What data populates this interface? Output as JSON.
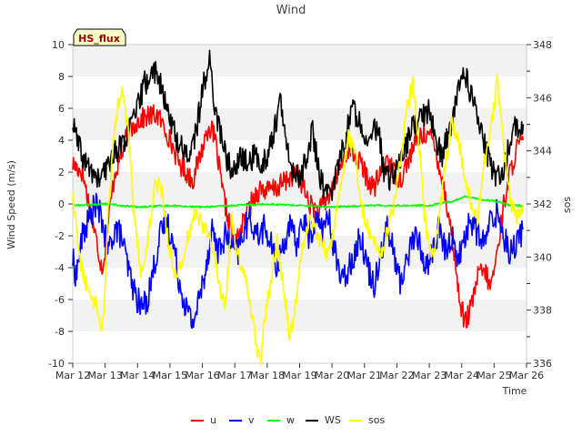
{
  "chart_data": {
    "type": "line",
    "title": "Wind",
    "badge": "HS_flux",
    "xlabel": "Time",
    "ylabel": "Wind Speed (m/s)",
    "y2label": "sos",
    "x_ticks": [
      "Mar 12",
      "Mar 13",
      "Mar 14",
      "Mar 15",
      "Mar 16",
      "Mar 17",
      "Mar 18",
      "Mar 19",
      "Mar 20",
      "Mar 21",
      "Mar 22",
      "Mar 23",
      "Mar 24",
      "Mar 25",
      "Mar 26"
    ],
    "xlim": [
      0,
      14
    ],
    "ylim": [
      -10,
      10
    ],
    "y_ticks": [
      -10,
      -8,
      -6,
      -4,
      -2,
      0,
      2,
      4,
      6,
      8,
      10
    ],
    "y2lim": [
      336,
      348
    ],
    "y2_ticks": [
      336,
      338,
      340,
      342,
      344,
      346,
      348
    ],
    "series": [
      {
        "name": "u",
        "color": "#ff0000",
        "axis": "left",
        "points": [
          [
            0.0,
            2.5
          ],
          [
            0.3,
            2.0
          ],
          [
            0.5,
            0.0
          ],
          [
            0.7,
            -2.0
          ],
          [
            0.9,
            -4.0
          ],
          [
            1.0,
            -3.0
          ],
          [
            1.1,
            -1.0
          ],
          [
            1.3,
            2.0
          ],
          [
            1.5,
            3.0
          ],
          [
            1.7,
            4.5
          ],
          [
            2.0,
            5.2
          ],
          [
            2.3,
            5.5
          ],
          [
            2.6,
            5.6
          ],
          [
            2.9,
            4.5
          ],
          [
            3.1,
            3.5
          ],
          [
            3.3,
            2.5
          ],
          [
            3.5,
            2.0
          ],
          [
            3.7,
            1.5
          ],
          [
            4.0,
            3.5
          ],
          [
            4.2,
            5.0
          ],
          [
            4.4,
            4.0
          ],
          [
            4.6,
            1.0
          ],
          [
            4.8,
            -1.0
          ],
          [
            5.0,
            -2.5
          ],
          [
            5.2,
            -1.5
          ],
          [
            5.4,
            -0.5
          ],
          [
            5.6,
            0.5
          ],
          [
            5.8,
            1.0
          ],
          [
            6.0,
            0.8
          ],
          [
            6.3,
            1.0
          ],
          [
            6.6,
            1.5
          ],
          [
            6.9,
            2.0
          ],
          [
            7.1,
            1.2
          ],
          [
            7.3,
            0.0
          ],
          [
            7.6,
            -0.5
          ],
          [
            7.9,
            0.5
          ],
          [
            8.1,
            1.5
          ],
          [
            8.3,
            2.5
          ],
          [
            8.5,
            3.5
          ],
          [
            8.7,
            3.0
          ],
          [
            8.9,
            2.5
          ],
          [
            9.1,
            1.5
          ],
          [
            9.3,
            1.0
          ],
          [
            9.5,
            2.0
          ],
          [
            9.7,
            3.0
          ],
          [
            9.9,
            2.0
          ],
          [
            10.1,
            1.5
          ],
          [
            10.3,
            2.5
          ],
          [
            10.5,
            3.5
          ],
          [
            10.7,
            4.2
          ],
          [
            10.9,
            4.5
          ],
          [
            11.1,
            4.0
          ],
          [
            11.3,
            2.5
          ],
          [
            11.5,
            0.5
          ],
          [
            11.7,
            -2.0
          ],
          [
            11.9,
            -5.5
          ],
          [
            12.1,
            -7.5
          ],
          [
            12.3,
            -6.5
          ],
          [
            12.5,
            -4.5
          ],
          [
            12.7,
            -4.2
          ],
          [
            12.9,
            -5.2
          ],
          [
            13.1,
            -3.0
          ],
          [
            13.3,
            0.0
          ],
          [
            13.5,
            2.0
          ],
          [
            13.7,
            3.5
          ],
          [
            13.9,
            4.0
          ]
        ]
      },
      {
        "name": "v",
        "color": "#0000ff",
        "axis": "left",
        "points": [
          [
            0.0,
            -3.5
          ],
          [
            0.1,
            -4.5
          ],
          [
            0.3,
            -2.0
          ],
          [
            0.5,
            -1.0
          ],
          [
            0.7,
            0.0
          ],
          [
            0.9,
            -1.0
          ],
          [
            1.1,
            -3.0
          ],
          [
            1.3,
            -1.5
          ],
          [
            1.5,
            -2.0
          ],
          [
            1.7,
            -4.0
          ],
          [
            1.9,
            -5.5
          ],
          [
            2.1,
            -6.5
          ],
          [
            2.3,
            -6.0
          ],
          [
            2.5,
            -4.0
          ],
          [
            2.7,
            -2.0
          ],
          [
            2.9,
            -1.0
          ],
          [
            3.1,
            -2.5
          ],
          [
            3.3,
            -5.0
          ],
          [
            3.5,
            -6.5
          ],
          [
            3.7,
            -7.5
          ],
          [
            3.9,
            -6.0
          ],
          [
            4.1,
            -4.0
          ],
          [
            4.3,
            -1.5
          ],
          [
            4.5,
            -3.0
          ],
          [
            4.7,
            -2.0
          ],
          [
            4.9,
            -2.5
          ],
          [
            5.1,
            -3.0
          ],
          [
            5.3,
            -1.5
          ],
          [
            5.5,
            -1.0
          ],
          [
            5.7,
            -2.0
          ],
          [
            5.9,
            -1.5
          ],
          [
            6.1,
            -2.5
          ],
          [
            6.3,
            -4.0
          ],
          [
            6.5,
            -2.5
          ],
          [
            6.7,
            -1.5
          ],
          [
            6.9,
            -2.5
          ],
          [
            7.1,
            -1.0
          ],
          [
            7.3,
            -2.0
          ],
          [
            7.5,
            -1.0
          ],
          [
            7.7,
            -1.5
          ],
          [
            7.9,
            -1.0
          ],
          [
            8.1,
            -3.0
          ],
          [
            8.3,
            -5.0
          ],
          [
            8.5,
            -4.0
          ],
          [
            8.7,
            -3.0
          ],
          [
            8.9,
            -2.0
          ],
          [
            9.1,
            -4.0
          ],
          [
            9.3,
            -5.0
          ],
          [
            9.5,
            -3.0
          ],
          [
            9.7,
            -1.5
          ],
          [
            9.9,
            -3.0
          ],
          [
            10.1,
            -5.0
          ],
          [
            10.3,
            -3.5
          ],
          [
            10.5,
            -2.0
          ],
          [
            10.7,
            -2.5
          ],
          [
            10.9,
            -4.0
          ],
          [
            11.1,
            -3.0
          ],
          [
            11.3,
            -1.5
          ],
          [
            11.5,
            -3.0
          ],
          [
            11.7,
            -2.0
          ],
          [
            11.9,
            -3.5
          ],
          [
            12.1,
            -2.0
          ],
          [
            12.3,
            -1.0
          ],
          [
            12.5,
            -2.0
          ],
          [
            12.7,
            -2.5
          ],
          [
            12.9,
            -1.0
          ],
          [
            13.1,
            -0.5
          ],
          [
            13.3,
            -2.0
          ],
          [
            13.5,
            -3.0
          ],
          [
            13.7,
            -2.5
          ],
          [
            13.9,
            -1.5
          ]
        ]
      },
      {
        "name": "w",
        "color": "#00ff00",
        "axis": "left",
        "points": [
          [
            0.0,
            -0.1
          ],
          [
            1.0,
            0.0
          ],
          [
            2.0,
            -0.2
          ],
          [
            3.0,
            -0.1
          ],
          [
            4.0,
            -0.2
          ],
          [
            5.0,
            -0.1
          ],
          [
            6.0,
            0.0
          ],
          [
            7.0,
            -0.1
          ],
          [
            8.0,
            -0.2
          ],
          [
            9.0,
            -0.1
          ],
          [
            10.0,
            -0.1
          ],
          [
            11.0,
            -0.1
          ],
          [
            11.8,
            0.2
          ],
          [
            12.1,
            0.5
          ],
          [
            12.5,
            0.3
          ],
          [
            13.0,
            0.2
          ],
          [
            13.5,
            -0.1
          ],
          [
            13.9,
            -0.1
          ]
        ]
      },
      {
        "name": "WS",
        "color": "#000000",
        "axis": "left",
        "points": [
          [
            0.0,
            5.0
          ],
          [
            0.2,
            3.5
          ],
          [
            0.4,
            2.5
          ],
          [
            0.6,
            2.0
          ],
          [
            0.8,
            1.5
          ],
          [
            1.0,
            2.0
          ],
          [
            1.2,
            3.0
          ],
          [
            1.4,
            3.5
          ],
          [
            1.6,
            4.0
          ],
          [
            1.8,
            5.0
          ],
          [
            2.0,
            6.0
          ],
          [
            2.2,
            7.5
          ],
          [
            2.4,
            8.0
          ],
          [
            2.6,
            8.5
          ],
          [
            2.8,
            6.5
          ],
          [
            3.0,
            5.5
          ],
          [
            3.2,
            4.0
          ],
          [
            3.4,
            3.5
          ],
          [
            3.6,
            3.0
          ],
          [
            3.8,
            4.5
          ],
          [
            4.0,
            7.0
          ],
          [
            4.2,
            9.2
          ],
          [
            4.4,
            6.0
          ],
          [
            4.6,
            4.0
          ],
          [
            4.8,
            2.5
          ],
          [
            5.0,
            2.0
          ],
          [
            5.2,
            3.0
          ],
          [
            5.4,
            2.5
          ],
          [
            5.6,
            3.0
          ],
          [
            5.8,
            2.5
          ],
          [
            6.0,
            3.0
          ],
          [
            6.2,
            4.5
          ],
          [
            6.4,
            6.5
          ],
          [
            6.6,
            3.5
          ],
          [
            6.8,
            2.0
          ],
          [
            7.0,
            1.5
          ],
          [
            7.2,
            3.0
          ],
          [
            7.4,
            4.5
          ],
          [
            7.6,
            2.0
          ],
          [
            7.8,
            0.5
          ],
          [
            8.0,
            1.0
          ],
          [
            8.2,
            2.5
          ],
          [
            8.4,
            4.0
          ],
          [
            8.6,
            6.0
          ],
          [
            8.8,
            5.5
          ],
          [
            9.0,
            4.5
          ],
          [
            9.2,
            4.0
          ],
          [
            9.4,
            5.0
          ],
          [
            9.6,
            2.0
          ],
          [
            9.8,
            1.5
          ],
          [
            10.0,
            2.5
          ],
          [
            10.2,
            3.0
          ],
          [
            10.4,
            4.5
          ],
          [
            10.6,
            5.0
          ],
          [
            10.8,
            5.5
          ],
          [
            11.0,
            6.0
          ],
          [
            11.2,
            4.0
          ],
          [
            11.4,
            3.0
          ],
          [
            11.6,
            4.5
          ],
          [
            11.8,
            6.0
          ],
          [
            12.0,
            8.5
          ],
          [
            12.2,
            7.5
          ],
          [
            12.4,
            6.0
          ],
          [
            12.6,
            4.5
          ],
          [
            12.8,
            3.0
          ],
          [
            13.0,
            2.0
          ],
          [
            13.2,
            1.5
          ],
          [
            13.4,
            3.0
          ],
          [
            13.6,
            5.0
          ],
          [
            13.8,
            4.5
          ],
          [
            13.9,
            5.0
          ]
        ]
      },
      {
        "name": "sos",
        "color": "#ffff00",
        "axis": "right",
        "points": [
          [
            0.0,
            342.5
          ],
          [
            0.2,
            340.0
          ],
          [
            0.4,
            339.0
          ],
          [
            0.6,
            338.5
          ],
          [
            0.8,
            338.0
          ],
          [
            0.9,
            337.2
          ],
          [
            1.0,
            339.0
          ],
          [
            1.1,
            342.0
          ],
          [
            1.3,
            345.0
          ],
          [
            1.5,
            346.3
          ],
          [
            1.7,
            345.0
          ],
          [
            1.9,
            341.5
          ],
          [
            2.1,
            339.5
          ],
          [
            2.3,
            340.5
          ],
          [
            2.5,
            342.5
          ],
          [
            2.7,
            343.0
          ],
          [
            2.9,
            341.0
          ],
          [
            3.1,
            339.5
          ],
          [
            3.3,
            339.5
          ],
          [
            3.5,
            340.5
          ],
          [
            3.7,
            341.5
          ],
          [
            3.9,
            341.5
          ],
          [
            4.1,
            341.0
          ],
          [
            4.3,
            340.5
          ],
          [
            4.5,
            339.0
          ],
          [
            4.7,
            338.0
          ],
          [
            4.9,
            341.5
          ],
          [
            5.1,
            340.0
          ],
          [
            5.3,
            339.5
          ],
          [
            5.5,
            338.0
          ],
          [
            5.7,
            336.5
          ],
          [
            5.8,
            336.0
          ],
          [
            5.9,
            337.5
          ],
          [
            6.1,
            339.0
          ],
          [
            6.3,
            340.5
          ],
          [
            6.5,
            339.0
          ],
          [
            6.7,
            337.0
          ],
          [
            6.9,
            338.5
          ],
          [
            7.1,
            340.5
          ],
          [
            7.3,
            341.5
          ],
          [
            7.5,
            341.0
          ],
          [
            7.7,
            340.5
          ],
          [
            7.9,
            340.0
          ],
          [
            8.1,
            341.5
          ],
          [
            8.3,
            343.0
          ],
          [
            8.5,
            344.5
          ],
          [
            8.7,
            344.0
          ],
          [
            8.9,
            342.0
          ],
          [
            9.1,
            341.0
          ],
          [
            9.3,
            340.5
          ],
          [
            9.5,
            340.0
          ],
          [
            9.7,
            341.0
          ],
          [
            9.9,
            342.0
          ],
          [
            10.1,
            343.5
          ],
          [
            10.3,
            345.5
          ],
          [
            10.5,
            346.5
          ],
          [
            10.7,
            344.0
          ],
          [
            10.9,
            341.0
          ],
          [
            11.1,
            340.0
          ],
          [
            11.3,
            341.5
          ],
          [
            11.5,
            343.5
          ],
          [
            11.7,
            345.0
          ],
          [
            11.9,
            344.5
          ],
          [
            12.1,
            343.0
          ],
          [
            12.3,
            342.0
          ],
          [
            12.5,
            341.5
          ],
          [
            12.7,
            343.5
          ],
          [
            12.9,
            345.0
          ],
          [
            13.1,
            346.5
          ],
          [
            13.3,
            344.0
          ],
          [
            13.5,
            342.0
          ],
          [
            13.7,
            341.5
          ],
          [
            13.9,
            342.0
          ]
        ]
      }
    ]
  }
}
